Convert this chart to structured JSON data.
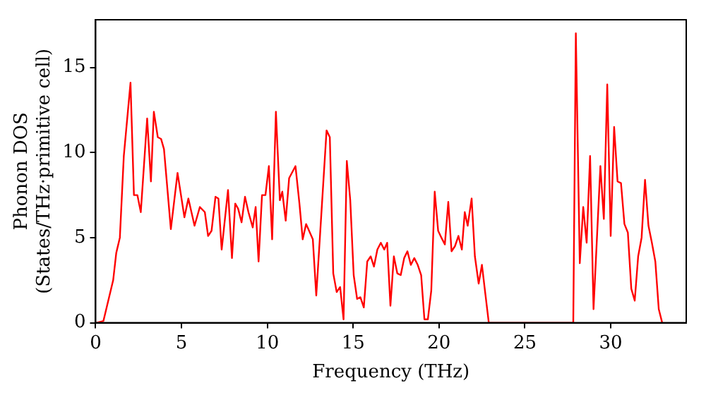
{
  "chart_data": {
    "type": "line",
    "xlabel": "Frequency (THz)",
    "ylabel": "Phonon DOS\n(States/THz·primitive cell)",
    "xlim": [
      0,
      34.4
    ],
    "xticks": [
      0,
      5,
      10,
      15,
      20,
      25,
      30
    ],
    "ylim": [
      0,
      17.8
    ],
    "yticks": [
      0,
      5,
      10,
      15
    ],
    "grid": false,
    "legend": false,
    "marker": "none",
    "line_style": "solid",
    "series": [
      {
        "color": "#ff0000",
        "x": [
          0.05,
          0.45,
          1.02,
          1.2,
          1.41,
          1.64,
          2.03,
          2.23,
          2.43,
          2.63,
          3.0,
          3.22,
          3.39,
          3.62,
          3.81,
          3.98,
          4.38,
          4.77,
          5.17,
          5.4,
          5.76,
          6.07,
          6.36,
          6.55,
          6.75,
          6.98,
          7.15,
          7.34,
          7.71,
          7.94,
          8.13,
          8.3,
          8.5,
          8.7,
          8.9,
          9.15,
          9.32,
          9.49,
          9.69,
          9.89,
          10.09,
          10.28,
          10.5,
          10.73,
          10.87,
          11.07,
          11.27,
          11.64,
          11.87,
          12.06,
          12.26,
          12.65,
          12.85,
          13.45,
          13.64,
          13.84,
          14.04,
          14.24,
          14.44,
          14.63,
          14.83,
          15.03,
          15.23,
          15.42,
          15.62,
          15.82,
          16.02,
          16.21,
          16.41,
          16.61,
          16.81,
          16.98,
          17.17,
          17.37,
          17.57,
          17.77,
          17.97,
          18.16,
          18.36,
          18.56,
          18.76,
          18.96,
          19.15,
          19.35,
          19.55,
          19.75,
          19.95,
          20.14,
          20.34,
          20.54,
          20.73,
          20.93,
          21.13,
          21.33,
          21.5,
          21.67,
          21.9,
          22.09,
          22.31,
          22.5,
          22.71,
          22.9,
          27.82,
          27.97,
          28.2,
          28.4,
          28.6,
          28.8,
          29.0,
          29.4,
          29.6,
          29.8,
          30.0,
          30.2,
          30.4,
          30.6,
          30.8,
          31.0,
          31.2,
          31.4,
          31.6,
          31.8,
          32.0,
          32.2,
          32.4,
          32.6,
          32.8,
          33.0
        ],
        "values": [
          0,
          0.1,
          2.5,
          4.1,
          5.0,
          9.8,
          14.1,
          7.5,
          7.5,
          6.5,
          12.0,
          8.3,
          12.4,
          10.9,
          10.8,
          10.2,
          5.5,
          8.8,
          6.2,
          7.3,
          5.7,
          6.8,
          6.5,
          5.1,
          5.4,
          7.4,
          7.3,
          4.3,
          7.8,
          3.8,
          7.0,
          6.7,
          5.9,
          7.4,
          6.5,
          5.6,
          6.8,
          3.6,
          7.5,
          7.5,
          9.2,
          4.9,
          12.4,
          7.2,
          7.7,
          6.0,
          8.5,
          9.2,
          7.0,
          4.9,
          5.8,
          4.9,
          1.6,
          11.3,
          10.9,
          2.9,
          1.8,
          2.1,
          0.2,
          9.5,
          7.2,
          2.8,
          1.4,
          1.5,
          0.9,
          3.6,
          3.9,
          3.3,
          4.3,
          4.7,
          4.3,
          4.7,
          1.0,
          3.9,
          2.9,
          2.8,
          3.8,
          4.2,
          3.4,
          3.8,
          3.4,
          2.8,
          0.2,
          0.2,
          1.9,
          7.7,
          5.4,
          5.0,
          4.6,
          7.1,
          4.2,
          4.5,
          5.1,
          4.3,
          6.5,
          5.7,
          7.3,
          3.9,
          2.3,
          3.4,
          1.6,
          0,
          0,
          17.0,
          3.5,
          6.8,
          4.7,
          9.8,
          0.8,
          9.2,
          6.1,
          14.0,
          5.1,
          11.5,
          8.3,
          8.2,
          5.8,
          5.3,
          2.0,
          1.3,
          3.9,
          5.0,
          8.4,
          5.7,
          4.7,
          3.6,
          0.8,
          0
        ]
      }
    ]
  }
}
